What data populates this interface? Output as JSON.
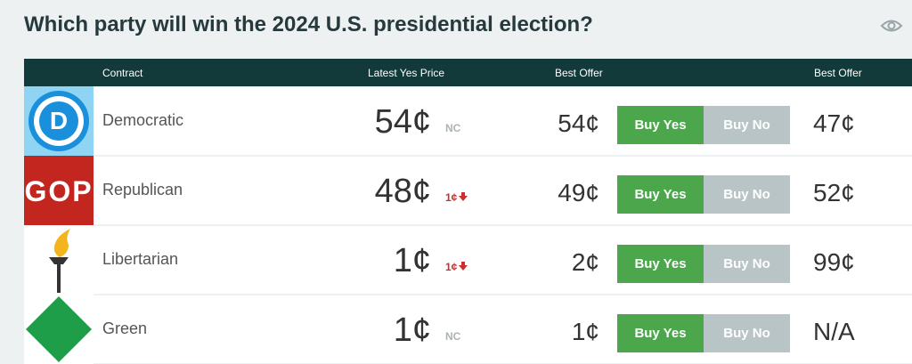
{
  "header": {
    "title": "Which party will win the 2024 U.S. presidential election?"
  },
  "table": {
    "columns": [
      "Contract",
      "Latest Yes Price",
      "Best Offer",
      "Best Offer"
    ],
    "rows": [
      {
        "logo": "D",
        "contract": "Democratic",
        "latest_yes_price": "54¢",
        "change": "NC",
        "best_yes_offer": "54¢",
        "buy_yes": "Buy Yes",
        "buy_no": "Buy No",
        "best_no_offer": "47¢"
      },
      {
        "logo": "GOP",
        "contract": "Republican",
        "latest_yes_price": "48¢",
        "change": "1¢",
        "best_yes_offer": "49¢",
        "buy_yes": "Buy Yes",
        "buy_no": "Buy No",
        "best_no_offer": "52¢"
      },
      {
        "contract": "Libertarian",
        "latest_yes_price": "1¢",
        "change": "1¢",
        "best_yes_offer": "2¢",
        "buy_yes": "Buy Yes",
        "buy_no": "Buy No",
        "best_no_offer": "99¢"
      },
      {
        "contract": "Green",
        "latest_yes_price": "1¢",
        "change": "NC",
        "best_yes_offer": "1¢",
        "buy_yes": "Buy Yes",
        "buy_no": "Buy No",
        "best_no_offer": "N/A"
      }
    ]
  }
}
